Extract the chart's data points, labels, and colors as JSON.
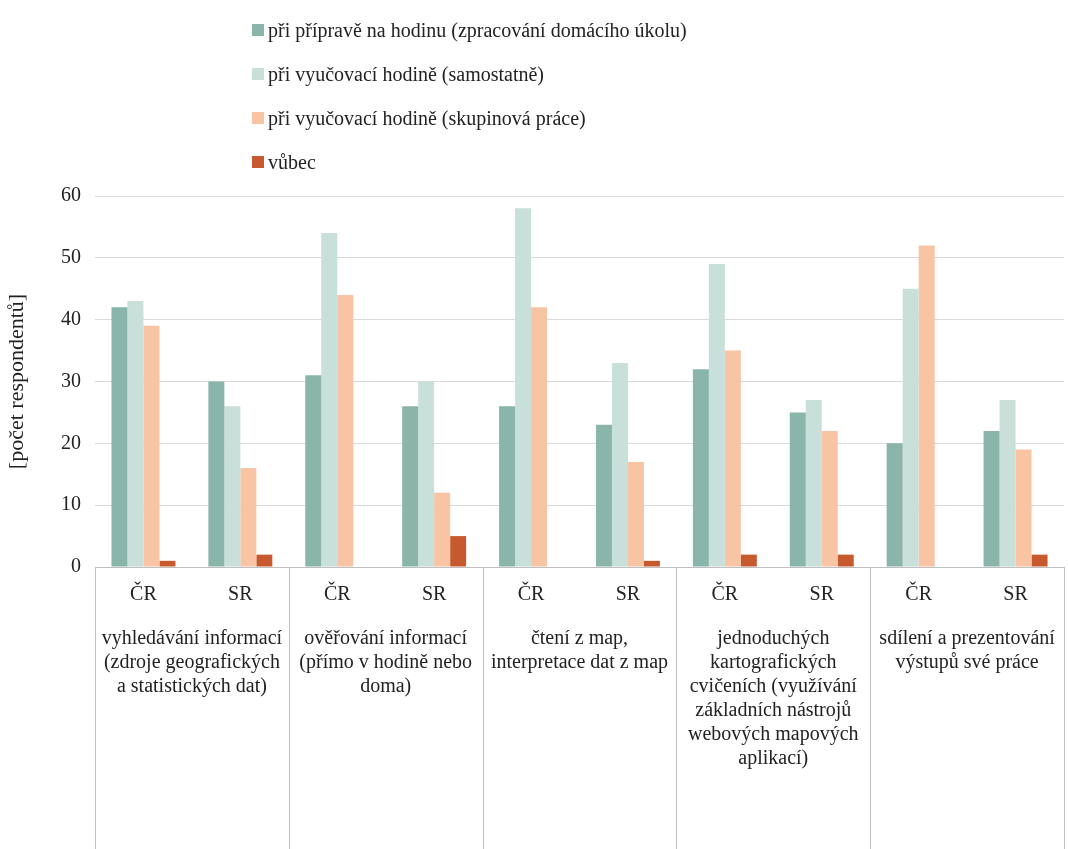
{
  "chart_data": {
    "type": "bar",
    "ylabel": "[počet respondentů]",
    "categories": [
      "ČR",
      "SR",
      "ČR",
      "SR",
      "ČR",
      "SR",
      "ČR",
      "SR",
      "ČR",
      "SR"
    ],
    "series": [
      {
        "name": "při přípravě na hodinu (zpracování domácího úkolu)",
        "color": "#8ab5aa",
        "values": [
          42,
          30,
          31,
          26,
          26,
          23,
          32,
          25,
          20,
          22
        ]
      },
      {
        "name": "při vyučovací hodině (samostatně)",
        "color": "#c9dfda",
        "values": [
          43,
          26,
          54,
          30,
          58,
          33,
          49,
          27,
          45,
          27
        ]
      },
      {
        "name": "při vyučovací hodině (skupinová práce)",
        "color": "#f8c4a3",
        "values": [
          39,
          16,
          44,
          12,
          42,
          17,
          35,
          22,
          52,
          19
        ]
      },
      {
        "name": "vůbec",
        "color": "#c65a2e",
        "values": [
          1,
          2,
          0,
          5,
          0,
          1,
          2,
          2,
          0,
          2
        ]
      }
    ],
    "annotations": [
      "vyhledávání informací (zdroje geografických a statistických dat)",
      "ověřování informací (přímo v hodině nebo doma)",
      "čtení z map, interpretace dat z map",
      "jednoduchých kartografických cvičeních (využívání základních nástrojů webových mapových aplikací)",
      "sdílení a prezentování výstupů své práce"
    ],
    "ylim": [
      0,
      60
    ],
    "yticks": [
      0,
      10,
      20,
      30,
      40,
      50,
      60
    ],
    "grid": "y",
    "legend": "top"
  }
}
